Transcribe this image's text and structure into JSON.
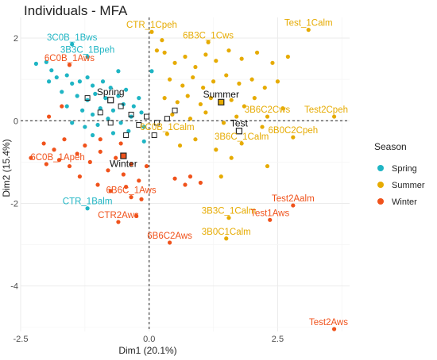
{
  "chart_data": {
    "type": "scatter",
    "title": "Individuals - MFA",
    "xlabel": "Dim1 (20.1%)",
    "ylabel": "Dim2 (15.4%)",
    "xlim": [
      -2.5,
      3.9
    ],
    "ylim": [
      -5.1,
      2.5
    ],
    "x_ticks": [
      -2.5,
      0.0,
      2.5
    ],
    "y_ticks": [
      -4,
      -2,
      0,
      2
    ],
    "grid": true,
    "reference_lines": {
      "x": 0,
      "y": 0
    },
    "legend": {
      "title": "Season",
      "placement": "right",
      "entries": [
        {
          "label": "Spring",
          "color": "#1fb5c4"
        },
        {
          "label": "Summer",
          "color": "#e6ab02"
        },
        {
          "label": "Winter",
          "color": "#f0521b"
        }
      ]
    },
    "series": [
      {
        "name": "Spring",
        "color": "#1fb5c4",
        "points": [
          {
            "x": -1.5,
            "y": 1.85,
            "label": "3C0B_1Bws"
          },
          {
            "x": -1.2,
            "y": 1.55,
            "label": "3B3C_1Bpeh"
          },
          {
            "x": -1.2,
            "y": -2.12,
            "label": "CTR_1Balm"
          },
          {
            "x": -2.2,
            "y": 1.38
          },
          {
            "x": -2.0,
            "y": 1.42
          },
          {
            "x": -1.9,
            "y": 1.22
          },
          {
            "x": -1.8,
            "y": 1.05
          },
          {
            "x": -1.95,
            "y": 0.95
          },
          {
            "x": -1.6,
            "y": 1.1
          },
          {
            "x": -1.5,
            "y": 0.9
          },
          {
            "x": -1.35,
            "y": 0.95
          },
          {
            "x": -1.2,
            "y": 1.05
          },
          {
            "x": -1.1,
            "y": 0.85
          },
          {
            "x": -0.9,
            "y": 0.95
          },
          {
            "x": -0.75,
            "y": 0.8
          },
          {
            "x": -1.7,
            "y": 0.7
          },
          {
            "x": -1.4,
            "y": 0.6
          },
          {
            "x": -1.2,
            "y": 0.5
          },
          {
            "x": -1.05,
            "y": 0.65
          },
          {
            "x": -0.85,
            "y": 0.55
          },
          {
            "x": -0.6,
            "y": 0.6
          },
          {
            "x": -0.45,
            "y": 0.75
          },
          {
            "x": -1.6,
            "y": 0.35
          },
          {
            "x": -1.3,
            "y": 0.25
          },
          {
            "x": -1.1,
            "y": 0.15
          },
          {
            "x": -0.95,
            "y": 0.3
          },
          {
            "x": -0.7,
            "y": 0.25
          },
          {
            "x": -0.5,
            "y": 0.4
          },
          {
            "x": -0.3,
            "y": 0.35
          },
          {
            "x": -1.5,
            "y": -0.05
          },
          {
            "x": -1.25,
            "y": -0.15
          },
          {
            "x": -1.0,
            "y": -0.1
          },
          {
            "x": -0.8,
            "y": 0.05
          },
          {
            "x": -0.55,
            "y": -0.05
          },
          {
            "x": -0.35,
            "y": 0.1
          },
          {
            "x": -0.15,
            "y": 0.2
          },
          {
            "x": -1.1,
            "y": -0.35
          },
          {
            "x": -0.7,
            "y": -0.3
          },
          {
            "x": -0.4,
            "y": -0.25
          },
          {
            "x": -0.1,
            "y": -0.15
          },
          {
            "x": -0.2,
            "y": 0.55
          },
          {
            "x": 0.05,
            "y": 1.2
          },
          {
            "x": -0.6,
            "y": 1.2
          },
          {
            "x": -0.1,
            "y": -0.5
          }
        ]
      },
      {
        "name": "Summer",
        "color": "#e6ab02",
        "points": [
          {
            "x": 0.05,
            "y": 2.15,
            "label": "CTR_1Cpeh"
          },
          {
            "x": 1.15,
            "y": 1.9,
            "label": "6B3C_1Cws"
          },
          {
            "x": 3.1,
            "y": 2.2,
            "label": "Test_1Calm"
          },
          {
            "x": 2.3,
            "y": 0.1,
            "label": "3B6C2Cws"
          },
          {
            "x": 3.6,
            "y": 0.1,
            "label": "Test2Cpeh"
          },
          {
            "x": 0.35,
            "y": -0.32,
            "label": "6C0B_1Calm"
          },
          {
            "x": 2.8,
            "y": -0.4,
            "label": "6B0C2Cpeh"
          },
          {
            "x": 1.8,
            "y": -0.55,
            "label": "3B6C_1Calm"
          },
          {
            "x": 1.55,
            "y": -2.35,
            "label": "3B3C_1Calm"
          },
          {
            "x": 1.5,
            "y": -2.85,
            "label": "3B0C1Calm"
          },
          {
            "x": 0.3,
            "y": 1.65
          },
          {
            "x": 0.5,
            "y": 1.4
          },
          {
            "x": 0.7,
            "y": 1.55
          },
          {
            "x": 0.9,
            "y": 1.3
          },
          {
            "x": 1.1,
            "y": 1.6
          },
          {
            "x": 1.3,
            "y": 1.45
          },
          {
            "x": 1.55,
            "y": 1.7
          },
          {
            "x": 1.8,
            "y": 1.5
          },
          {
            "x": 2.1,
            "y": 1.65
          },
          {
            "x": 2.4,
            "y": 1.4
          },
          {
            "x": 2.7,
            "y": 1.55
          },
          {
            "x": 0.4,
            "y": 1.0
          },
          {
            "x": 0.65,
            "y": 0.85
          },
          {
            "x": 0.85,
            "y": 1.05
          },
          {
            "x": 1.05,
            "y": 0.8
          },
          {
            "x": 1.25,
            "y": 0.95
          },
          {
            "x": 1.5,
            "y": 1.1
          },
          {
            "x": 1.75,
            "y": 0.9
          },
          {
            "x": 2.0,
            "y": 1.0
          },
          {
            "x": 2.25,
            "y": 0.8
          },
          {
            "x": 2.5,
            "y": 0.95
          },
          {
            "x": 0.3,
            "y": 0.55
          },
          {
            "x": 0.55,
            "y": 0.45
          },
          {
            "x": 0.75,
            "y": 0.6
          },
          {
            "x": 1.0,
            "y": 0.4
          },
          {
            "x": 1.2,
            "y": 0.55
          },
          {
            "x": 1.6,
            "y": 0.5
          },
          {
            "x": 1.85,
            "y": 0.35
          },
          {
            "x": 2.05,
            "y": 0.55
          },
          {
            "x": 0.45,
            "y": 0.15
          },
          {
            "x": 0.8,
            "y": 0.05
          },
          {
            "x": 1.1,
            "y": 0.2
          },
          {
            "x": 1.45,
            "y": -0.05
          },
          {
            "x": 1.7,
            "y": 0.1
          },
          {
            "x": 2.2,
            "y": -0.15
          },
          {
            "x": 2.6,
            "y": 0.3
          },
          {
            "x": 0.6,
            "y": -0.6
          },
          {
            "x": 0.9,
            "y": -0.45
          },
          {
            "x": 1.3,
            "y": -0.7
          },
          {
            "x": 1.6,
            "y": -0.9
          },
          {
            "x": 2.3,
            "y": -1.1
          },
          {
            "x": 0.25,
            "y": 1.95
          },
          {
            "x": 1.4,
            "y": -1.35
          },
          {
            "x": 0.15,
            "y": 1.7
          }
        ]
      },
      {
        "name": "Winter",
        "color": "#f0521b",
        "points": [
          {
            "x": -1.55,
            "y": 1.35,
            "label": "6C0B_1Aws"
          },
          {
            "x": -2.0,
            "y": -1.05,
            "label": "6C0B_1Apeh"
          },
          {
            "x": -0.35,
            "y": -1.85,
            "label": "6B6C_1Aws"
          },
          {
            "x": -0.6,
            "y": -2.45,
            "label": "CTR2Aws"
          },
          {
            "x": 0.4,
            "y": -2.95,
            "label": "6B6C2Aws"
          },
          {
            "x": 2.8,
            "y": -2.05,
            "label": "Test2Aalm"
          },
          {
            "x": 2.35,
            "y": -2.4,
            "label": "Test1Aws"
          },
          {
            "x": 3.6,
            "y": -5.3,
            "label": "Test2Aws"
          },
          {
            "x": -2.05,
            "y": -0.55
          },
          {
            "x": -1.85,
            "y": -0.7
          },
          {
            "x": -1.65,
            "y": -0.45
          },
          {
            "x": -1.75,
            "y": -0.95
          },
          {
            "x": -1.55,
            "y": -1.1
          },
          {
            "x": -1.4,
            "y": -0.8
          },
          {
            "x": -1.25,
            "y": -0.6
          },
          {
            "x": -1.15,
            "y": -1.0
          },
          {
            "x": -0.95,
            "y": -0.75
          },
          {
            "x": -0.8,
            "y": -1.2
          },
          {
            "x": -0.65,
            "y": -0.9
          },
          {
            "x": -0.5,
            "y": -1.3
          },
          {
            "x": -0.35,
            "y": -1.05
          },
          {
            "x": -0.2,
            "y": -1.45
          },
          {
            "x": -0.05,
            "y": -1.1
          },
          {
            "x": -1.35,
            "y": -1.35
          },
          {
            "x": -1.0,
            "y": -1.55
          },
          {
            "x": -0.75,
            "y": -1.7
          },
          {
            "x": -0.45,
            "y": -1.6
          },
          {
            "x": -0.15,
            "y": -1.9
          },
          {
            "x": -0.95,
            "y": -0.45
          },
          {
            "x": -0.55,
            "y": -0.55
          },
          {
            "x": 0.5,
            "y": -1.4
          },
          {
            "x": 0.8,
            "y": -1.35
          },
          {
            "x": 0.7,
            "y": -1.55
          },
          {
            "x": 1.0,
            "y": -1.5
          },
          {
            "x": -1.7,
            "y": 0.35
          },
          {
            "x": -1.95,
            "y": 0.1
          },
          {
            "x": -2.3,
            "y": -0.9
          },
          {
            "x": -0.25,
            "y": -2.3
          }
        ]
      }
    ],
    "supplementary": [
      {
        "label": "Spring",
        "x": -0.75,
        "y": 0.5
      },
      {
        "label": "Summer",
        "x": 1.4,
        "y": 0.45
      },
      {
        "label": "Test",
        "x": 1.75,
        "y": -0.25
      },
      {
        "label": "Winter",
        "x": -0.5,
        "y": -0.85
      }
    ],
    "unlabeled_open_squares": [
      {
        "x": -1.2,
        "y": 0.55
      },
      {
        "x": -0.95,
        "y": 0.2
      },
      {
        "x": -0.75,
        "y": -0.05
      },
      {
        "x": -0.55,
        "y": 0.35
      },
      {
        "x": -0.35,
        "y": 0.15
      },
      {
        "x": -0.2,
        "y": -0.1
      },
      {
        "x": -0.05,
        "y": 0.1
      },
      {
        "x": 0.15,
        "y": -0.05
      },
      {
        "x": 0.35,
        "y": 0.05
      },
      {
        "x": 0.1,
        "y": -0.35
      },
      {
        "x": -0.45,
        "y": -0.35
      },
      {
        "x": 0.5,
        "y": 0.25
      }
    ]
  }
}
